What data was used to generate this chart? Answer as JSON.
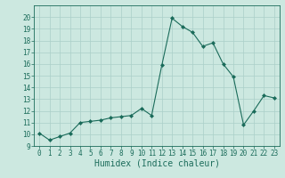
{
  "xlabel": "Humidex (Indice chaleur)",
  "ylabel": "",
  "x_values": [
    0,
    1,
    2,
    3,
    4,
    5,
    6,
    7,
    8,
    9,
    10,
    11,
    12,
    13,
    14,
    15,
    16,
    17,
    18,
    19,
    20,
    21,
    22,
    23
  ],
  "y_values": [
    10.1,
    9.5,
    9.8,
    10.1,
    11.0,
    11.1,
    11.2,
    11.4,
    11.5,
    11.6,
    12.2,
    11.6,
    15.9,
    19.9,
    19.2,
    18.7,
    17.5,
    17.8,
    16.0,
    14.9,
    10.8,
    12.0,
    13.3,
    13.1
  ],
  "line_color": "#1a6b5a",
  "marker": "D",
  "marker_size": 2.0,
  "bg_color": "#cce8e0",
  "grid_color": "#aacfc8",
  "xlim": [
    -0.5,
    23.5
  ],
  "ylim": [
    9,
    21
  ],
  "yticks": [
    9,
    10,
    11,
    12,
    13,
    14,
    15,
    16,
    17,
    18,
    19,
    20
  ],
  "xticks": [
    0,
    1,
    2,
    3,
    4,
    5,
    6,
    7,
    8,
    9,
    10,
    11,
    12,
    13,
    14,
    15,
    16,
    17,
    18,
    19,
    20,
    21,
    22,
    23
  ],
  "tick_fontsize": 5.5,
  "label_fontsize": 7.0
}
